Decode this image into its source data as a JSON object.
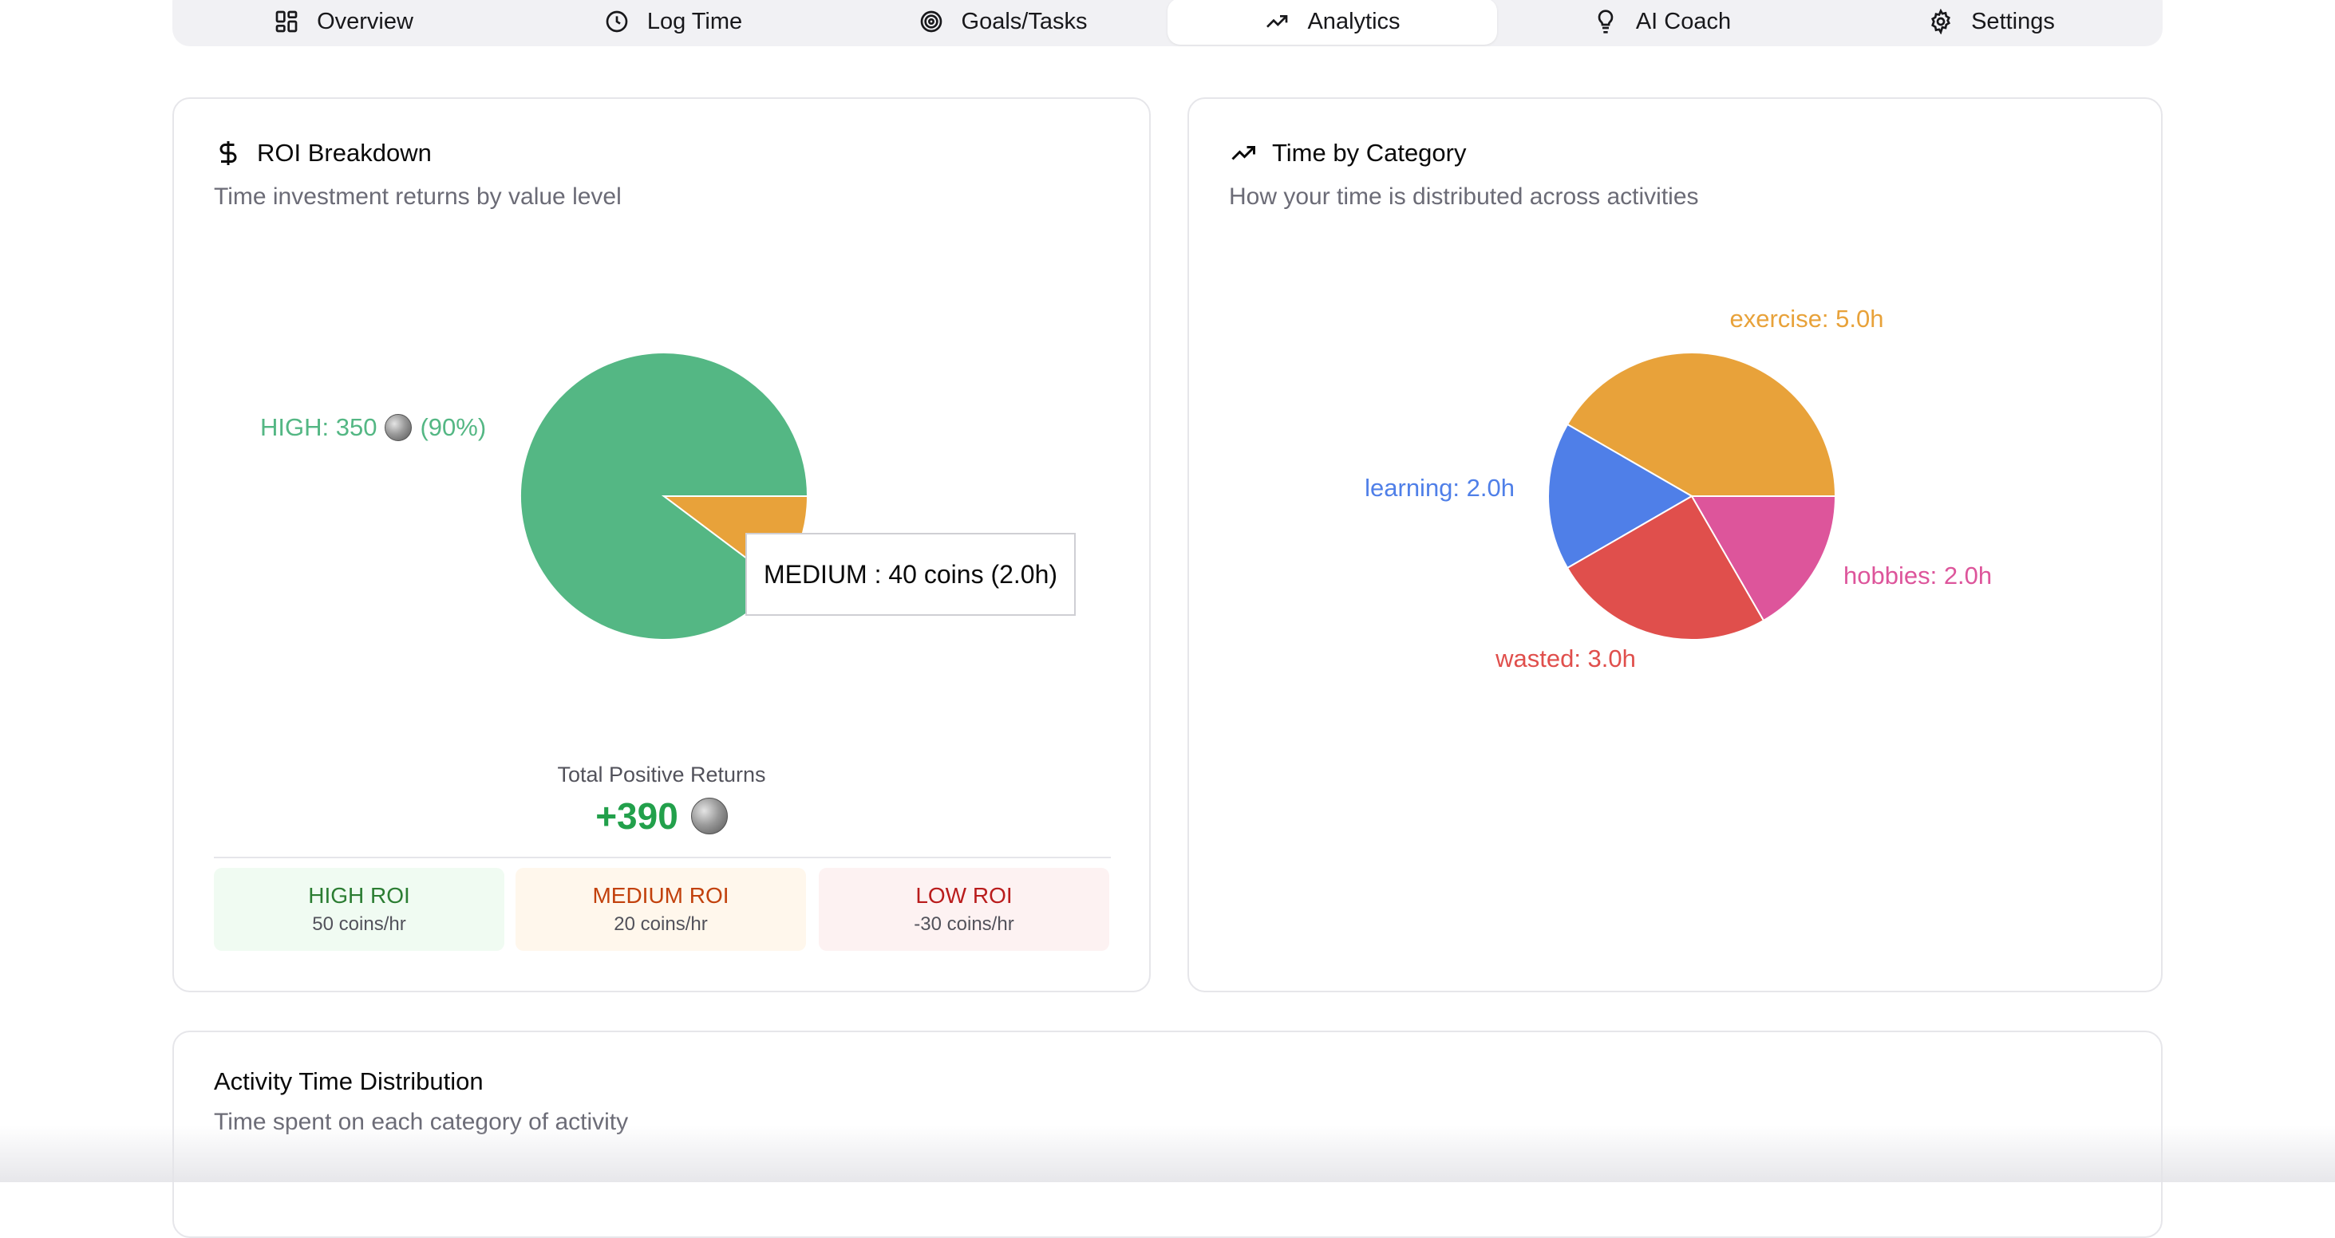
{
  "tabs": [
    {
      "label": "Overview",
      "icon": "grid-icon"
    },
    {
      "label": "Log Time",
      "icon": "clock-icon"
    },
    {
      "label": "Goals/Tasks",
      "icon": "target-icon"
    },
    {
      "label": "Analytics",
      "icon": "trending-up-icon",
      "active": true
    },
    {
      "label": "AI Coach",
      "icon": "lightbulb-icon"
    },
    {
      "label": "Settings",
      "icon": "gear-icon"
    }
  ],
  "roi_card": {
    "title": "ROI Breakdown",
    "icon": "dollar-icon",
    "subtitle": "Time investment returns by value level",
    "high_label": "HIGH: 350",
    "high_pct": "(90%)",
    "tooltip": "MEDIUM : 40 coins (2.0h)",
    "total_label": "Total Positive Returns",
    "total_value": "+390",
    "levels": [
      {
        "name": "HIGH ROI",
        "rate": "50 coins/hr",
        "color": "#2b7d32",
        "bg": "#f0fbf2"
      },
      {
        "name": "MEDIUM ROI",
        "rate": "20 coins/hr",
        "color": "#c2410c",
        "bg": "#fff7ec"
      },
      {
        "name": "LOW ROI",
        "rate": "-30 coins/hr",
        "color": "#b91c1c",
        "bg": "#fdf2f2"
      }
    ]
  },
  "category_card": {
    "title": "Time by Category",
    "icon": "trending-up-icon",
    "subtitle": "How your time is distributed across activities"
  },
  "activity_card": {
    "title": "Activity Time Distribution",
    "subtitle": "Time spent on each category of activity"
  },
  "chart_data": [
    {
      "type": "pie",
      "labels": [
        "HIGH",
        "MEDIUM"
      ],
      "values": [
        350,
        40
      ],
      "colors": [
        "#54b784",
        "#e8a23a"
      ],
      "legend": "none"
    },
    {
      "type": "pie",
      "labels": [
        "exercise: 5.0h",
        "hobbies: 2.0h",
        "wasted: 3.0h",
        "learning: 2.0h"
      ],
      "values": [
        5.0,
        2.0,
        3.0,
        2.0
      ],
      "colors": [
        "#e8a23a",
        "#dd559b",
        "#e04f4c",
        "#4f7fe8"
      ],
      "legend": "none"
    }
  ]
}
